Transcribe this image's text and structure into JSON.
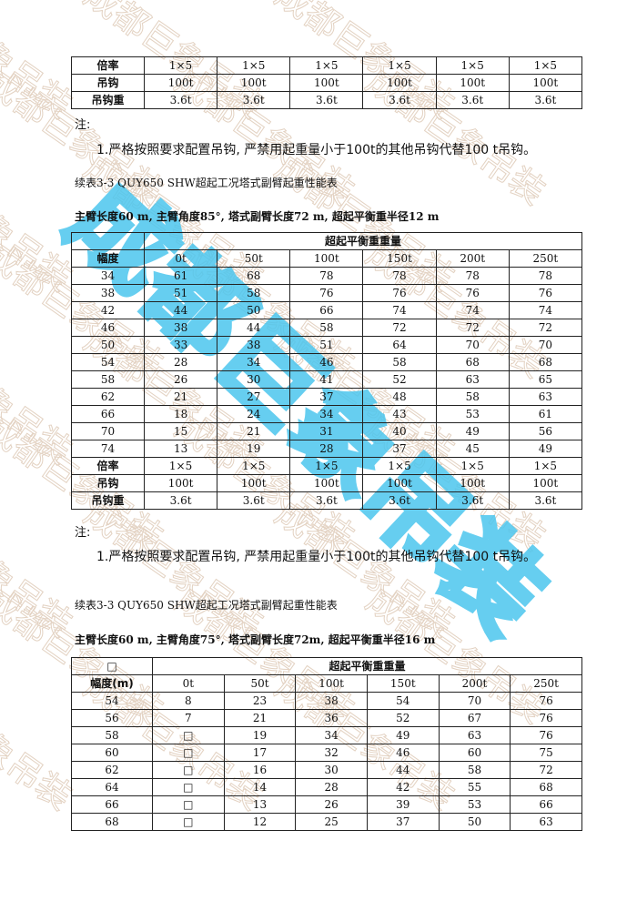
{
  "watermark": {
    "text": "成都巨象吊装",
    "color": "#4cc6ee",
    "faint_color": "#e3d2c2"
  },
  "table0": {
    "rows": [
      {
        "label": "倍率",
        "values": [
          "1×5",
          "1×5",
          "1×5",
          "1×5",
          "1×5",
          "1×5"
        ]
      },
      {
        "label": "吊钩",
        "values": [
          "100t",
          "100t",
          "100t",
          "100t",
          "100t",
          "100t"
        ]
      },
      {
        "label": "吊钩重",
        "values": [
          "3.6t",
          "3.6t",
          "3.6t",
          "3.6t",
          "3.6t",
          "3.6t"
        ]
      }
    ]
  },
  "note_a": {
    "label": "注:",
    "text": "1.严格按照要求配置吊钩, 严禁用起重量小于100t的其他吊钩代替100 t吊钩。"
  },
  "section_b": {
    "title": "续表3-3 QUY650 SHW超起工况塔式副臂起重性能表",
    "subtitle": "主臂长度60 m, 主臂角度85°, 塔式副臂长度72 m, 超起平衡重半径12 m",
    "table": {
      "corner": "",
      "group_header": "超起平衡重重量",
      "row_header": "幅度",
      "columns": [
        "0t",
        "50t",
        "100t",
        "150t",
        "200t",
        "250t"
      ],
      "rows": [
        {
          "label": "34",
          "values": [
            "61",
            "68",
            "78",
            "78",
            "78",
            "78"
          ]
        },
        {
          "label": "38",
          "values": [
            "51",
            "58",
            "76",
            "76",
            "76",
            "76"
          ]
        },
        {
          "label": "42",
          "values": [
            "44",
            "50",
            "66",
            "74",
            "74",
            "74"
          ]
        },
        {
          "label": "46",
          "values": [
            "38",
            "44",
            "58",
            "72",
            "72",
            "72"
          ]
        },
        {
          "label": "50",
          "values": [
            "33",
            "38",
            "51",
            "64",
            "70",
            "70"
          ]
        },
        {
          "label": "54",
          "values": [
            "28",
            "34",
            "46",
            "58",
            "68",
            "68"
          ]
        },
        {
          "label": "58",
          "values": [
            "26",
            "30",
            "41",
            "52",
            "63",
            "65"
          ]
        },
        {
          "label": "62",
          "values": [
            "21",
            "27",
            "37",
            "48",
            "58",
            "63"
          ]
        },
        {
          "label": "66",
          "values": [
            "18",
            "24",
            "34",
            "43",
            "53",
            "61"
          ]
        },
        {
          "label": "70",
          "values": [
            "15",
            "21",
            "31",
            "40",
            "49",
            "56"
          ]
        },
        {
          "label": "74",
          "values": [
            "13",
            "19",
            "28",
            "37",
            "45",
            "49"
          ]
        }
      ],
      "footer_rows": [
        {
          "label": "倍率",
          "values": [
            "1×5",
            "1×5",
            "1×5",
            "1×5",
            "1×5",
            "1×5"
          ]
        },
        {
          "label": "吊钩",
          "values": [
            "100t",
            "100t",
            "100t",
            "100t",
            "100t",
            "100t"
          ]
        },
        {
          "label": "吊钩重",
          "values": [
            "3.6t",
            "3.6t",
            "3.6t",
            "3.6t",
            "3.6t",
            "3.6t"
          ]
        }
      ]
    },
    "note_label": "注:",
    "note_text": "1.严格按照要求配置吊钩, 严禁用起重量小于100t的其他吊钩代替100 t吊钩。"
  },
  "section_c": {
    "title": "续表3-3 QUY650 SHW超起工况塔式副臂起重性能表",
    "subtitle": "主臂长度60 m, 主臂角度75°, 塔式副臂长度72m, 超起平衡重半径16 m",
    "table": {
      "corner": "□",
      "group_header": "超起平衡重重量",
      "row_header": "幅度(m)",
      "columns": [
        "0t",
        "50t",
        "100t",
        "150t",
        "200t",
        "250t"
      ],
      "rows": [
        {
          "label": "54",
          "values": [
            "8",
            "23",
            "38",
            "54",
            "70",
            "76"
          ]
        },
        {
          "label": "56",
          "values": [
            "7",
            "21",
            "36",
            "52",
            "67",
            "76"
          ]
        },
        {
          "label": "58",
          "values": [
            "□",
            "19",
            "34",
            "49",
            "63",
            "76"
          ]
        },
        {
          "label": "60",
          "values": [
            "□",
            "17",
            "32",
            "46",
            "60",
            "75"
          ]
        },
        {
          "label": "62",
          "values": [
            "□",
            "16",
            "30",
            "44",
            "58",
            "72"
          ]
        },
        {
          "label": "64",
          "values": [
            "□",
            "14",
            "28",
            "42",
            "55",
            "68"
          ]
        },
        {
          "label": "66",
          "values": [
            "□",
            "13",
            "26",
            "39",
            "53",
            "66"
          ]
        },
        {
          "label": "68",
          "values": [
            "□",
            "12",
            "25",
            "37",
            "50",
            "63"
          ]
        }
      ]
    }
  }
}
